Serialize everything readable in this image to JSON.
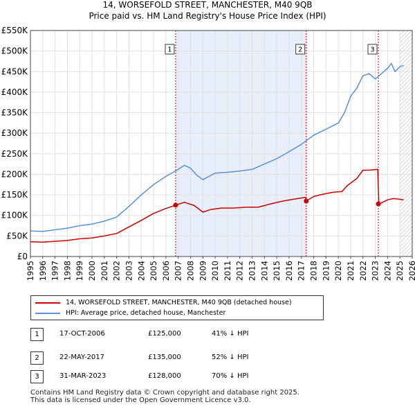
{
  "title_line1": "14, WORSEFOLD STREET, MANCHESTER, M40 9QB",
  "title_line2": "Price paid vs. HM Land Registry's House Price Index (HPI)",
  "colors": {
    "property": "#cc0000",
    "hpi": "#5b8fd6",
    "shade": "#e8eefa",
    "hatch": "#bbbbbb",
    "marker_line": "#cc0000",
    "grid": "#e0e0e0"
  },
  "chart_data": {
    "type": "line",
    "xlim": [
      1995,
      2026
    ],
    "ylim": [
      0,
      550000
    ],
    "y_ticks": [
      {
        "value": 0,
        "label": "£0"
      },
      {
        "value": 50000,
        "label": "£50K"
      },
      {
        "value": 100000,
        "label": "£100K"
      },
      {
        "value": 150000,
        "label": "£150K"
      },
      {
        "value": 200000,
        "label": "£200K"
      },
      {
        "value": 250000,
        "label": "£250K"
      },
      {
        "value": 300000,
        "label": "£300K"
      },
      {
        "value": 350000,
        "label": "£350K"
      },
      {
        "value": 400000,
        "label": "£400K"
      },
      {
        "value": 450000,
        "label": "£450K"
      },
      {
        "value": 500000,
        "label": "£500K"
      },
      {
        "value": 550000,
        "label": "£550K"
      }
    ],
    "x_ticks": [
      "1995",
      "1996",
      "1997",
      "1998",
      "1999",
      "2000",
      "2001",
      "2002",
      "2003",
      "2004",
      "2005",
      "2006",
      "2007",
      "2008",
      "2009",
      "2010",
      "2011",
      "2012",
      "2013",
      "2014",
      "2015",
      "2016",
      "2017",
      "2018",
      "2019",
      "2020",
      "2021",
      "2022",
      "2023",
      "2024",
      "2025",
      "2026"
    ],
    "shaded_range": [
      2006.79,
      2017.39
    ],
    "hatched_from": 2025.0,
    "series": [
      {
        "name": "14, WORSEFOLD STREET, MANCHESTER, M40 9QB (detached house)",
        "points": [
          [
            1995,
            36000
          ],
          [
            1996,
            35000
          ],
          [
            1997,
            37000
          ],
          [
            1998,
            39000
          ],
          [
            1999,
            43000
          ],
          [
            2000,
            45000
          ],
          [
            2001,
            50000
          ],
          [
            2002,
            56000
          ],
          [
            2003,
            72000
          ],
          [
            2004,
            88000
          ],
          [
            2005,
            105000
          ],
          [
            2006,
            117000
          ],
          [
            2006.79,
            125000
          ],
          [
            2007.5,
            132000
          ],
          [
            2008.3,
            124000
          ],
          [
            2009.0,
            108000
          ],
          [
            2009.6,
            114000
          ],
          [
            2010.5,
            118000
          ],
          [
            2011.5,
            118000
          ],
          [
            2012.5,
            120000
          ],
          [
            2013.5,
            120000
          ],
          [
            2014.5,
            128000
          ],
          [
            2015.5,
            135000
          ],
          [
            2016.5,
            140000
          ],
          [
            2017.35,
            144000
          ],
          [
            2017.39,
            135000
          ],
          [
            2018.0,
            146000
          ],
          [
            2018.5,
            150000
          ],
          [
            2019.5,
            156000
          ],
          [
            2020.3,
            158000
          ],
          [
            2020.7,
            172000
          ],
          [
            2021.5,
            190000
          ],
          [
            2022.0,
            210000
          ],
          [
            2022.5,
            210000
          ],
          [
            2023.2,
            212000
          ],
          [
            2023.28,
            135000
          ],
          [
            2023.35,
            128000
          ],
          [
            2024.0,
            138000
          ],
          [
            2024.5,
            141000
          ],
          [
            2025.3,
            138000
          ]
        ]
      },
      {
        "name": "HPI: Average price, detached house, Manchester",
        "points": [
          [
            1995,
            62000
          ],
          [
            1996,
            61000
          ],
          [
            1997,
            65000
          ],
          [
            1998,
            69000
          ],
          [
            1999,
            75000
          ],
          [
            2000,
            79000
          ],
          [
            2001,
            86000
          ],
          [
            2002,
            96000
          ],
          [
            2003,
            122000
          ],
          [
            2004,
            150000
          ],
          [
            2005,
            175000
          ],
          [
            2006,
            195000
          ],
          [
            2007,
            212000
          ],
          [
            2007.5,
            222000
          ],
          [
            2008.0,
            215000
          ],
          [
            2008.5,
            198000
          ],
          [
            2009.0,
            187000
          ],
          [
            2009.5,
            195000
          ],
          [
            2010.0,
            203000
          ],
          [
            2011.0,
            205000
          ],
          [
            2012.0,
            208000
          ],
          [
            2013.0,
            212000
          ],
          [
            2014.0,
            225000
          ],
          [
            2015.0,
            238000
          ],
          [
            2016.0,
            255000
          ],
          [
            2017.0,
            273000
          ],
          [
            2018.0,
            295000
          ],
          [
            2019.0,
            310000
          ],
          [
            2020.0,
            325000
          ],
          [
            2020.5,
            350000
          ],
          [
            2021.0,
            390000
          ],
          [
            2021.5,
            410000
          ],
          [
            2022.0,
            440000
          ],
          [
            2022.5,
            445000
          ],
          [
            2023.0,
            432000
          ],
          [
            2023.5,
            445000
          ],
          [
            2024.0,
            458000
          ],
          [
            2024.3,
            470000
          ],
          [
            2024.6,
            450000
          ],
          [
            2025.0,
            462000
          ],
          [
            2025.3,
            465000
          ]
        ]
      }
    ],
    "markers": [
      {
        "label": "1",
        "x": 2006.79,
        "y": 125000
      },
      {
        "label": "2",
        "x": 2017.39,
        "y": 135000
      },
      {
        "label": "3",
        "x": 2023.25,
        "y": 128000
      }
    ]
  },
  "legend": {
    "property_label": "14, WORSEFOLD STREET, MANCHESTER, M40 9QB (detached house)",
    "hpi_label": "HPI: Average price, detached house, Manchester"
  },
  "sales": [
    {
      "num": "1",
      "date": "17-OCT-2006",
      "price": "£125,000",
      "hpi": "41% ↓ HPI"
    },
    {
      "num": "2",
      "date": "22-MAY-2017",
      "price": "£135,000",
      "hpi": "52% ↓ HPI"
    },
    {
      "num": "3",
      "date": "31-MAR-2023",
      "price": "£128,000",
      "hpi": "70% ↓ HPI"
    }
  ],
  "footer_line1": "Contains HM Land Registry data © Crown copyright and database right 2025.",
  "footer_line2": "This data is licensed under the Open Government Licence v3.0."
}
